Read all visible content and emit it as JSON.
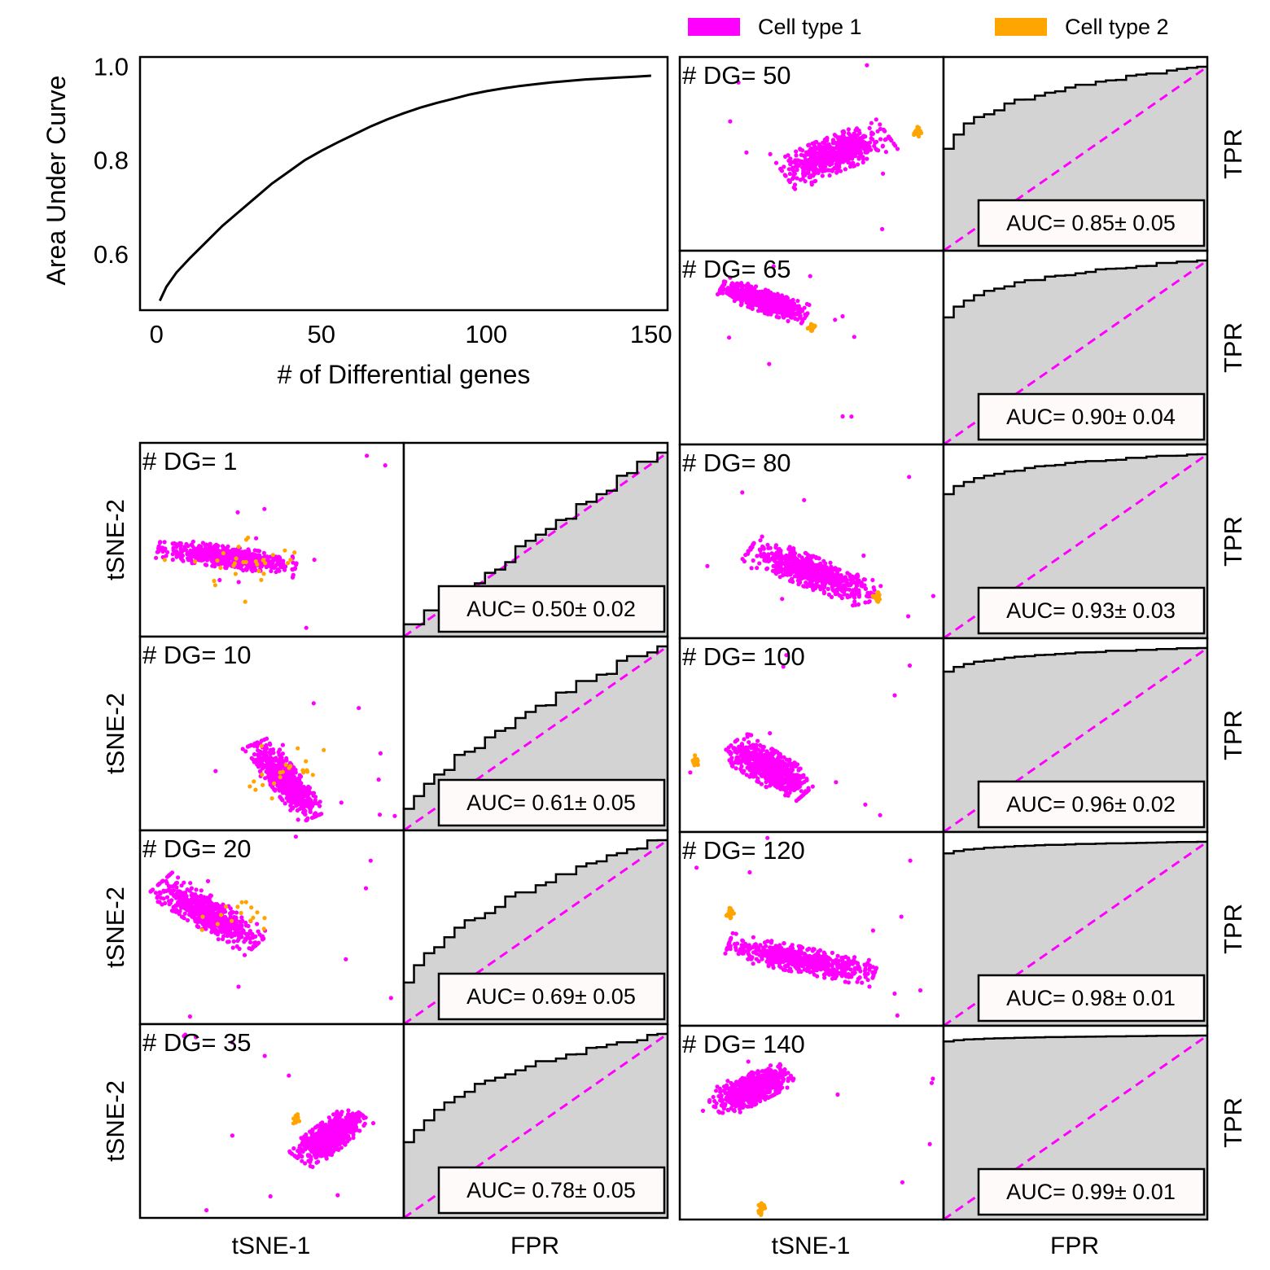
{
  "colors": {
    "cell1": "#ff00ff",
    "cell2": "#ffa500",
    "curve": "#000000",
    "fill": "#d3d3d3",
    "diag": "#ff00ff",
    "frame": "#000000"
  },
  "legend": {
    "cell1": "Cell type 1",
    "cell2": "Cell type 2"
  },
  "chart_data": [
    {
      "type": "line",
      "title": "",
      "xlabel": "#  of Differential genes",
      "ylabel": "Area Under Curve",
      "xlim": [
        -5,
        155
      ],
      "ylim": [
        0.48,
        1.02
      ],
      "xticks": [
        0,
        50,
        100,
        150
      ],
      "xtick_labels": [
        "0",
        "50",
        "100",
        "150"
      ],
      "yticks": [
        0.6,
        0.8,
        1.0
      ],
      "ytick_labels": [
        "0.6",
        "0.8",
        "1.0"
      ],
      "series": [
        {
          "name": "AUC",
          "x": [
            1,
            3,
            6,
            10,
            15,
            20,
            25,
            30,
            35,
            40,
            45,
            50,
            55,
            60,
            65,
            70,
            75,
            80,
            85,
            90,
            95,
            100,
            105,
            110,
            115,
            120,
            125,
            130,
            135,
            140,
            145,
            150
          ],
          "y": [
            0.5,
            0.53,
            0.56,
            0.59,
            0.625,
            0.66,
            0.69,
            0.72,
            0.75,
            0.775,
            0.8,
            0.82,
            0.838,
            0.855,
            0.872,
            0.887,
            0.9,
            0.912,
            0.922,
            0.931,
            0.94,
            0.947,
            0.953,
            0.958,
            0.962,
            0.966,
            0.969,
            0.972,
            0.974,
            0.976,
            0.978,
            0.98
          ]
        }
      ]
    },
    {
      "type": "scatter+roc panels",
      "scatter_xlabel": "tSNE-1",
      "scatter_ylabel": "tSNE-2",
      "roc_xlabel": "FPR",
      "roc_ylabel": "TPR",
      "auc_prefix": "AUC= ",
      "dg_prefix": "# DG= ",
      "panels": [
        {
          "dg": "1",
          "auc": "0.50± 0.02",
          "auc_value": 0.5,
          "cx": 0.33,
          "cy": 0.41,
          "rx": 0.24,
          "ry": 0.05,
          "angle": -11,
          "c2x": 0.42,
          "c2y": 0.38,
          "c2r": 0.14,
          "c2n": 30,
          "c2mix": true
        },
        {
          "dg": "10",
          "auc": "0.61± 0.05",
          "auc_value": 0.61,
          "cx": 0.55,
          "cy": 0.26,
          "rx": 0.2,
          "ry": 0.055,
          "angle": -60,
          "c2x": 0.55,
          "c2y": 0.3,
          "c2r": 0.12,
          "c2n": 22,
          "c2mix": true
        },
        {
          "dg": "20",
          "auc": "0.69± 0.05",
          "auc_value": 0.69,
          "cx": 0.26,
          "cy": 0.57,
          "rx": 0.22,
          "ry": 0.07,
          "angle": -40,
          "c2x": 0.38,
          "c2y": 0.56,
          "c2r": 0.09,
          "c2n": 16,
          "c2mix": true
        },
        {
          "dg": "35",
          "auc": "0.78± 0.05",
          "auc_value": 0.78,
          "cx": 0.72,
          "cy": 0.42,
          "rx": 0.15,
          "ry": 0.065,
          "angle": 45,
          "c2x": 0.59,
          "c2y": 0.51,
          "c2r": 0.012,
          "c2n": 28,
          "c2mix": false
        },
        {
          "dg": "50",
          "auc": "0.85± 0.05",
          "auc_value": 0.85,
          "cx": 0.59,
          "cy": 0.5,
          "rx": 0.2,
          "ry": 0.08,
          "angle": 28,
          "c2x": 0.9,
          "c2y": 0.61,
          "c2r": 0.012,
          "c2n": 30,
          "c2mix": false
        },
        {
          "dg": "65",
          "auc": "0.90± 0.04",
          "auc_value": 0.9,
          "cx": 0.32,
          "cy": 0.74,
          "rx": 0.16,
          "ry": 0.05,
          "angle": -25,
          "c2x": 0.5,
          "c2y": 0.6,
          "c2r": 0.012,
          "c2n": 26,
          "c2mix": false
        },
        {
          "dg": "80",
          "auc": "0.93± 0.03",
          "auc_value": 0.93,
          "cx": 0.5,
          "cy": 0.34,
          "rx": 0.24,
          "ry": 0.07,
          "angle": -28,
          "c2x": 0.75,
          "c2y": 0.21,
          "c2r": 0.012,
          "c2n": 28,
          "c2mix": false
        },
        {
          "dg": "100",
          "auc": "0.96± 0.02",
          "auc_value": 0.96,
          "cx": 0.34,
          "cy": 0.33,
          "rx": 0.17,
          "ry": 0.075,
          "angle": -40,
          "c2x": 0.06,
          "c2y": 0.36,
          "c2r": 0.012,
          "c2n": 30,
          "c2mix": false
        },
        {
          "dg": "120",
          "auc": "0.98± 0.01",
          "auc_value": 0.98,
          "cx": 0.46,
          "cy": 0.34,
          "rx": 0.26,
          "ry": 0.06,
          "angle": -15,
          "c2x": 0.19,
          "c2y": 0.58,
          "c2r": 0.012,
          "c2n": 28,
          "c2mix": false
        },
        {
          "dg": "140",
          "auc": "0.99± 0.01",
          "auc_value": 0.99,
          "cx": 0.27,
          "cy": 0.67,
          "rx": 0.15,
          "ry": 0.065,
          "angle": 35,
          "c2x": 0.31,
          "c2y": 0.06,
          "c2r": 0.012,
          "c2n": 24,
          "c2mix": false
        }
      ]
    }
  ]
}
